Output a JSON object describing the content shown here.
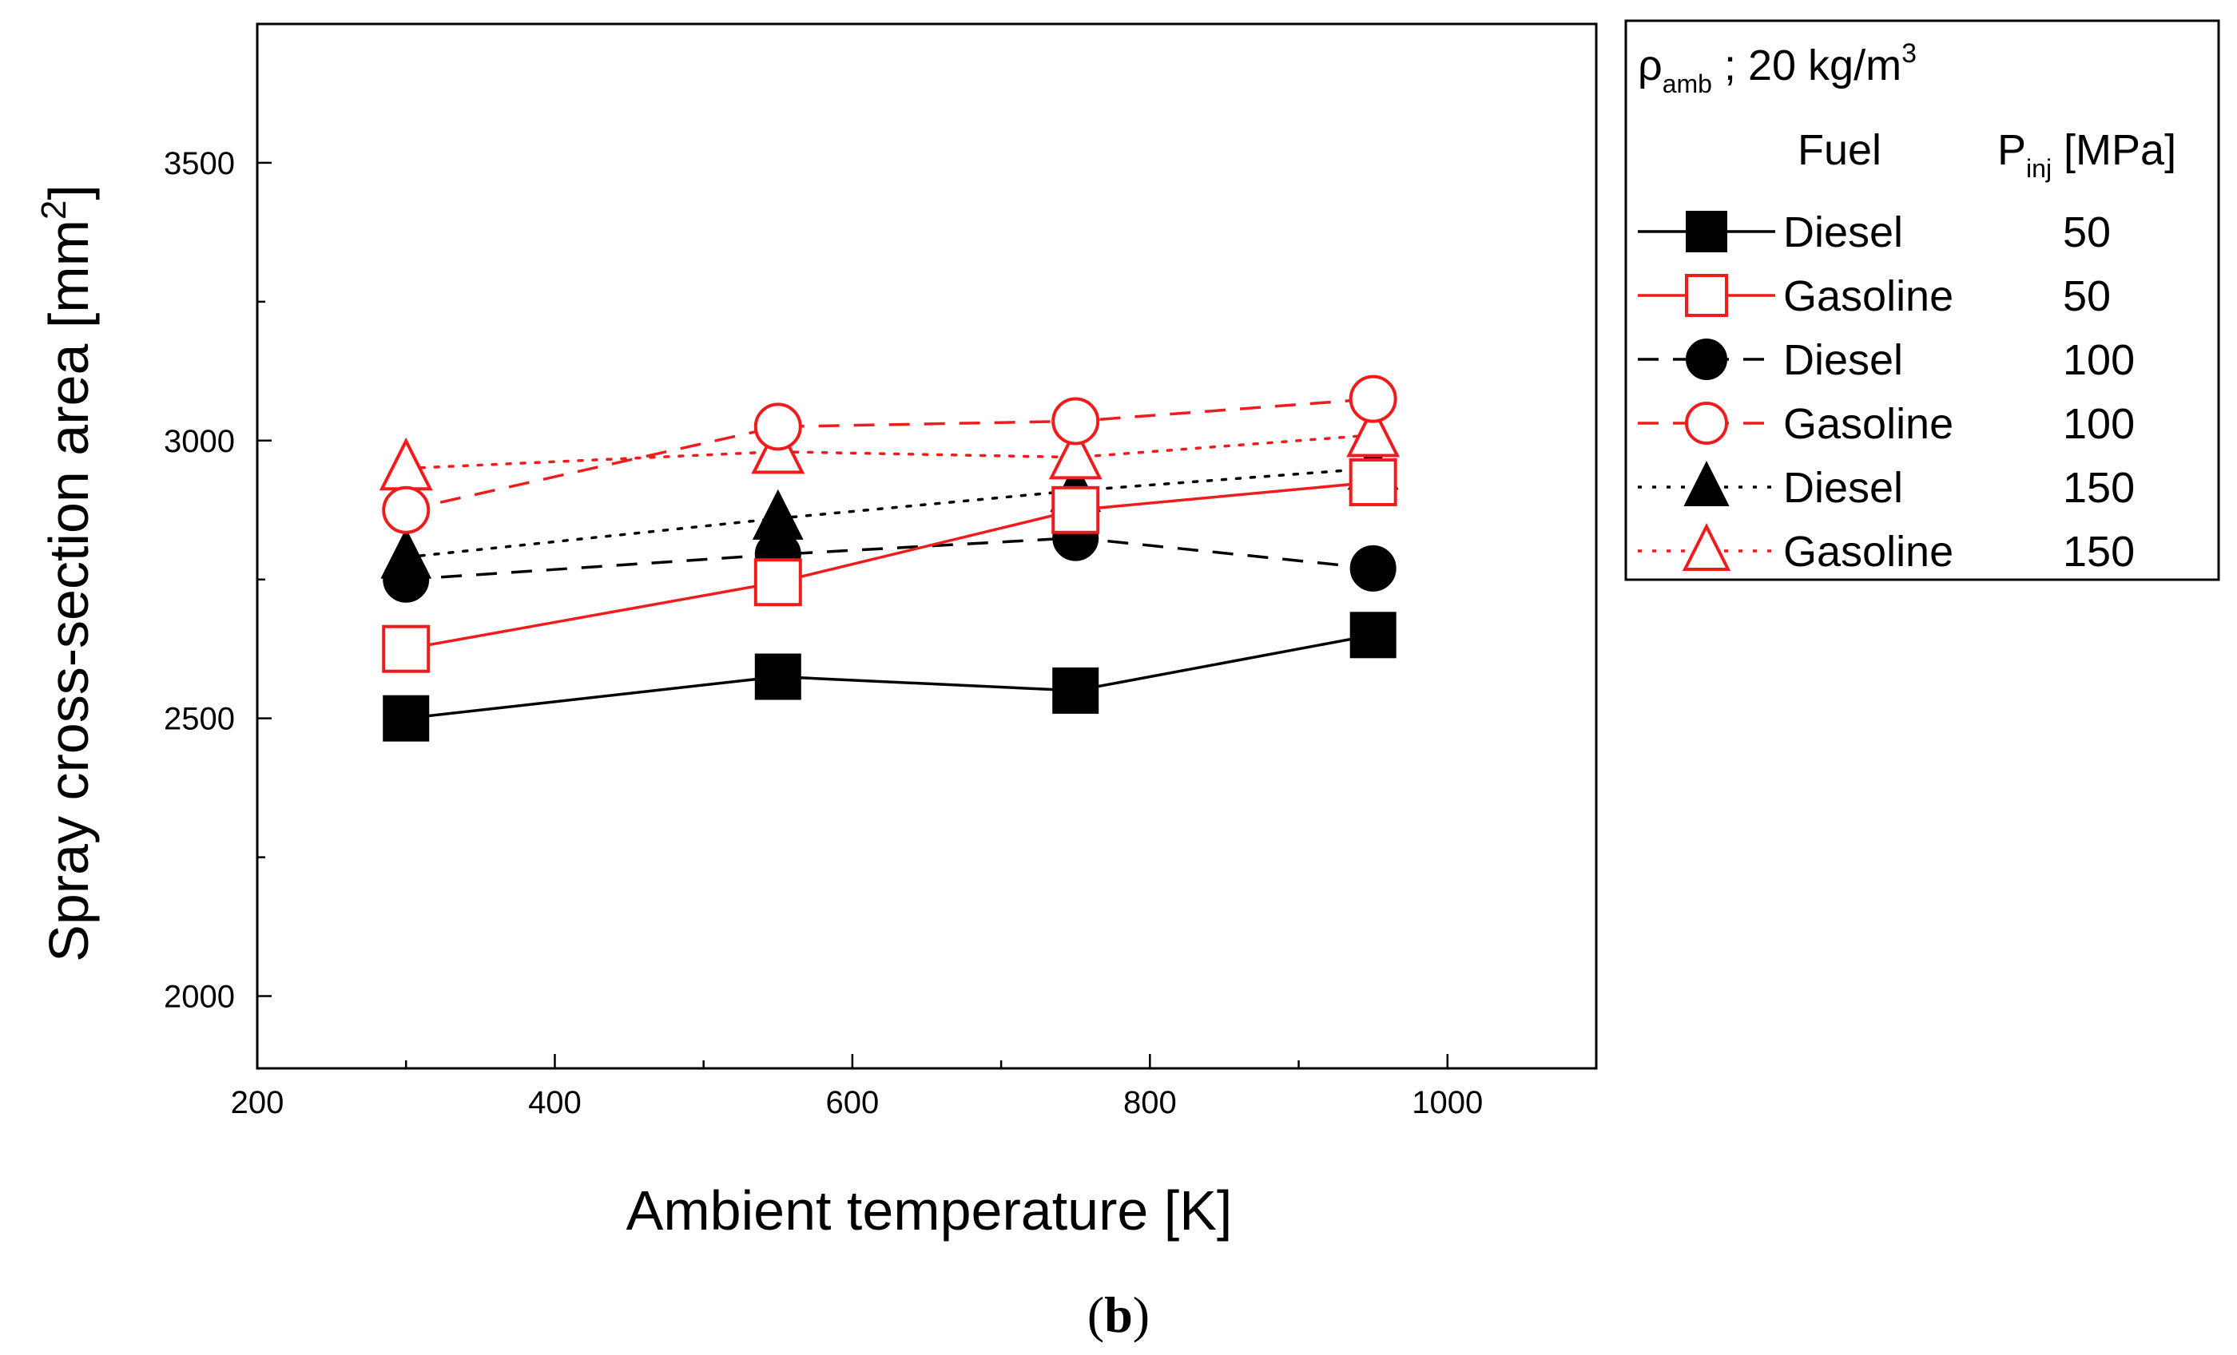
{
  "chart_data": {
    "type": "line",
    "title": "",
    "xlabel": "Ambient temperature [K]",
    "ylabel": "Spray cross-section area [mm",
    "ylabel_sup": "2",
    "ylabel_end": "]",
    "xlim": [
      200,
      1100
    ],
    "ylim": [
      1870,
      3750
    ],
    "xticks": [
      200,
      400,
      600,
      800,
      1000
    ],
    "yticks": [
      2000,
      2500,
      3000,
      3500
    ],
    "x": [
      300,
      550,
      750,
      950
    ],
    "series": [
      {
        "name": "Diesel",
        "pinj": "50",
        "values": [
          2500,
          2575,
          2550,
          2650
        ],
        "color": "#000000",
        "marker": "square",
        "filled": true,
        "dash": "solid"
      },
      {
        "name": "Gasoline",
        "pinj": "50",
        "values": [
          2625,
          2745,
          2875,
          2925
        ],
        "color": "#ee1c1c",
        "marker": "square",
        "filled": false,
        "dash": "solid"
      },
      {
        "name": "Diesel",
        "pinj": "100",
        "values": [
          2750,
          2795,
          2825,
          2770
        ],
        "color": "#000000",
        "marker": "circle",
        "filled": true,
        "dash": "dashed"
      },
      {
        "name": "Gasoline",
        "pinj": "100",
        "values": [
          2875,
          3025,
          3035,
          3075
        ],
        "color": "#ee1c1c",
        "marker": "circle",
        "filled": false,
        "dash": "dashed"
      },
      {
        "name": "Diesel",
        "pinj": "150",
        "values": [
          2790,
          2860,
          2910,
          2950
        ],
        "color": "#000000",
        "marker": "triangle",
        "filled": true,
        "dash": "dotted"
      },
      {
        "name": "Gasoline",
        "pinj": "150",
        "values": [
          2950,
          2980,
          2970,
          3010
        ],
        "color": "#ee1c1c",
        "marker": "triangle",
        "filled": false,
        "dash": "dotted"
      }
    ],
    "legend": {
      "rho_symbol": "ρ",
      "rho_sub": "amb",
      "density_text": " ; 20 kg/m",
      "density_sup": "3",
      "fuel_header": "Fuel",
      "pinj_symbol": "P",
      "pinj_sub": "inj",
      "pinj_unit": " [MPa]"
    }
  },
  "caption": {
    "open": "(",
    "letter": "b",
    "close": ")"
  }
}
